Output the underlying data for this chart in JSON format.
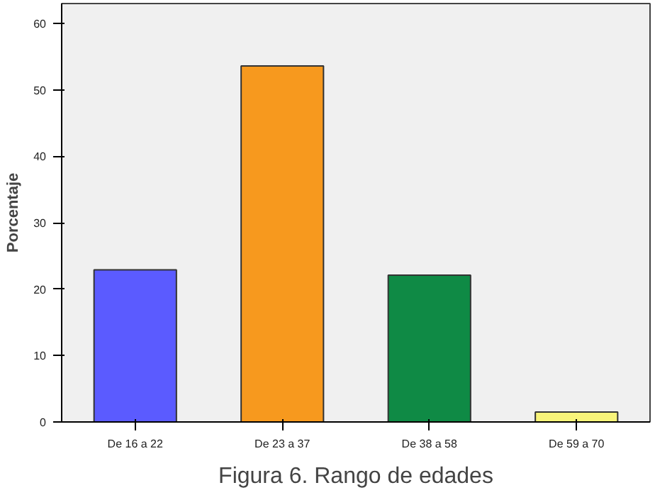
{
  "chart_data": {
    "type": "bar",
    "categories": [
      "De 16 a 22",
      "De 23 a 37",
      "De 38 a 58",
      "De 59 a 70"
    ],
    "values": [
      22.9,
      53.6,
      22.1,
      1.5
    ],
    "colors": [
      "#5b5bff",
      "#f7991e",
      "#0f8a45",
      "#f8f47a"
    ],
    "ylabel": "Porcentaje",
    "ylim": [
      0,
      63
    ],
    "yticks": [
      0,
      10,
      20,
      30,
      40,
      50,
      60
    ],
    "grid": false,
    "annotations": [
      "Figura 6. Rango de edades"
    ]
  }
}
